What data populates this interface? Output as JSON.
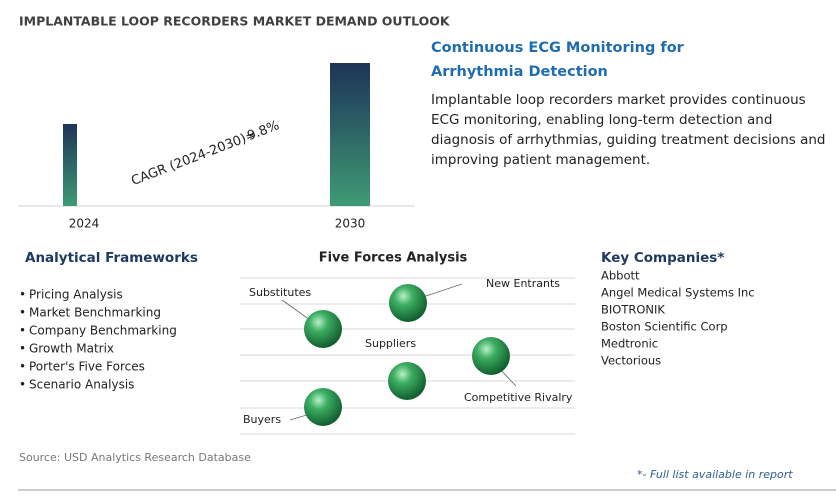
{
  "chart_data": {
    "type": "bar",
    "title": "IMPLANTABLE LOOP RECORDERS MARKET DEMAND OUTLOOK",
    "categories": [
      "2024",
      "2030"
    ],
    "values": [
      82,
      143
    ],
    "ylim": [
      0,
      150
    ],
    "cagr_label": "CAGR (2024-2030)=",
    "cagr_value": "9.8%"
  },
  "summary": {
    "heading": "Continuous ECG Monitoring for Arrhythmia Detection",
    "text": "Implantable loop recorders market provides continuous ECG monitoring, enabling long-term detection and diagnosis of arrhythmias, guiding treatment decisions and improving patient management."
  },
  "frameworks": {
    "title": "Analytical Frameworks",
    "items": [
      "Pricing Analysis",
      "Market Benchmarking",
      "Company Benchmarking",
      "Growth Matrix",
      "Porter's Five Forces",
      "Scenario Analysis"
    ]
  },
  "five_forces": {
    "title": "Five Forces Analysis",
    "labels": [
      "Substitutes",
      "New Entrants",
      "Suppliers",
      "Competitive Rivalry",
      "Buyers"
    ]
  },
  "companies": {
    "title": "Key Companies*",
    "items": [
      "Abbott",
      "Angel Medical Systems Inc",
      "BIOTRONIK",
      "Boston Scientific Corp",
      "Medtronic",
      "Vectorious"
    ]
  },
  "footer": {
    "source": "Source: USD Analytics Research Database",
    "note": "*- Full list available in report"
  }
}
